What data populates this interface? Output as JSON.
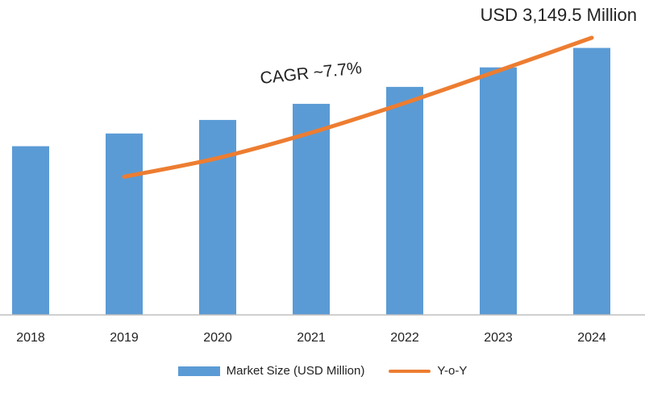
{
  "annotations": {
    "total": "USD 3,149.5 Million",
    "cagr": "CAGR ~7.7%"
  },
  "colors": {
    "bar": "#5b9bd5",
    "line": "#ed7d31",
    "axis": "#bfbfbf",
    "text": "#222222"
  },
  "chart_data": {
    "type": "bar",
    "categories": [
      "2018",
      "2019",
      "2020",
      "2021",
      "2022",
      "2023",
      "2024"
    ],
    "series": [
      {
        "name": "Market Size (USD Million)",
        "type": "bar",
        "values": [
          1990,
          2140,
          2300,
          2490,
          2690,
          2920,
          3149.5
        ]
      },
      {
        "name": "Y-o-Y",
        "type": "line",
        "values": [
          null,
          1630,
          1850,
          2150,
          2500,
          2880,
          3270
        ]
      }
    ],
    "ylim": [
      0,
      3430
    ],
    "legend_position": "bottom",
    "grid": false
  }
}
